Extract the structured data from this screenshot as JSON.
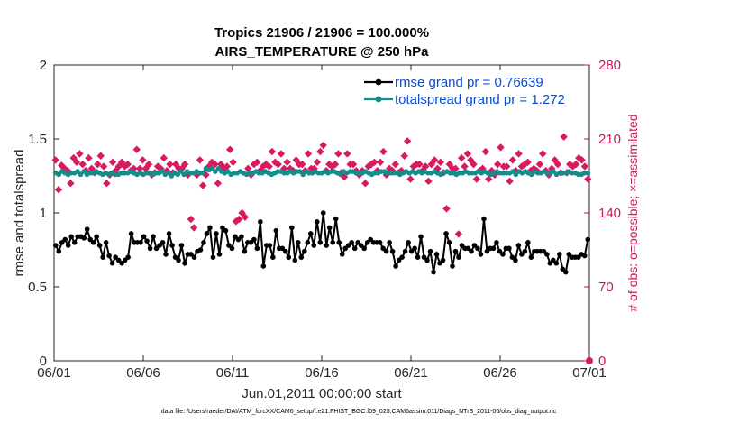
{
  "chart_data": {
    "type": "line",
    "title": "Tropics 21906 / 21906 = 100.000%",
    "subtitle": "AIRS_TEMPERATURE @ 250 hPa",
    "xlabel": "Jun.01,2011 00:00:00 start",
    "ylabel": "rmse and totalspread",
    "y2label": "# of obs: o=possible; ×=assimilated",
    "x_ticks": [
      "06/01",
      "06/06",
      "06/11",
      "06/16",
      "06/21",
      "06/26",
      "07/01"
    ],
    "xlim": [
      0,
      30
    ],
    "ylim": [
      0,
      2
    ],
    "y2lim": [
      0,
      280
    ],
    "y_ticks": [
      "0",
      "0.5",
      "1",
      "1.5",
      "2"
    ],
    "y2_ticks": [
      "0",
      "70",
      "140",
      "210",
      "280"
    ],
    "series": [
      {
        "name": "rmse grand pr = 0.76639",
        "axis": "left",
        "color": "#000000",
        "values": [
          0.78,
          0.74,
          0.8,
          0.82,
          0.78,
          0.84,
          0.8,
          0.84,
          0.84,
          0.83,
          0.89,
          0.82,
          0.8,
          0.84,
          0.78,
          0.7,
          0.8,
          0.71,
          0.66,
          0.7,
          0.68,
          0.66,
          0.68,
          0.7,
          0.86,
          0.8,
          0.8,
          0.8,
          0.84,
          0.81,
          0.76,
          0.84,
          0.76,
          0.78,
          0.8,
          0.72,
          0.86,
          0.78,
          0.7,
          0.68,
          0.78,
          0.66,
          0.72,
          0.72,
          0.7,
          0.74,
          0.75,
          0.8,
          0.86,
          0.9,
          0.7,
          0.86,
          0.72,
          0.9,
          0.88,
          0.78,
          0.76,
          0.84,
          0.82,
          0.84,
          0.74,
          0.8,
          0.8,
          0.82,
          0.76,
          0.94,
          0.64,
          0.78,
          0.78,
          0.7,
          0.88,
          0.76,
          0.76,
          0.74,
          0.7,
          0.9,
          0.68,
          0.8,
          0.7,
          0.74,
          0.8,
          0.86,
          0.78,
          0.94,
          0.8,
          1.0,
          0.78,
          0.9,
          0.8,
          0.96,
          0.8,
          0.72,
          0.76,
          0.78,
          0.8,
          0.76,
          0.8,
          0.78,
          0.76,
          0.8,
          0.82,
          0.8,
          0.8,
          0.8,
          0.76,
          0.74,
          0.8,
          0.74,
          0.64,
          0.68,
          0.7,
          0.74,
          0.8,
          0.74,
          0.76,
          0.7,
          0.84,
          0.7,
          0.68,
          0.74,
          0.6,
          0.72,
          0.66,
          0.68,
          0.86,
          0.8,
          0.64,
          0.74,
          0.7,
          0.78,
          0.76,
          0.76,
          0.74,
          0.78,
          0.76,
          0.72,
          0.96,
          0.74,
          0.76,
          0.76,
          0.8,
          0.74,
          0.72,
          0.76,
          0.76,
          0.7,
          0.68,
          0.78,
          0.72,
          0.74,
          0.8,
          0.7,
          0.74,
          0.74,
          0.74,
          0.74,
          0.72,
          0.66,
          0.68,
          0.66,
          0.72,
          0.62,
          0.6,
          0.72,
          0.7,
          0.7,
          0.7,
          0.72,
          0.71,
          0.82
        ]
      },
      {
        "name": "totalspread grand pr = 1.272",
        "axis": "left",
        "color": "#138c8c",
        "values": [
          1.27,
          1.26,
          1.28,
          1.27,
          1.26,
          1.27,
          1.27,
          1.28,
          1.26,
          1.28,
          1.26,
          1.27,
          1.27,
          1.28,
          1.27,
          1.26,
          1.27,
          1.26,
          1.27,
          1.26,
          1.26,
          1.27,
          1.27,
          1.27,
          1.28,
          1.27,
          1.26,
          1.27,
          1.26,
          1.27,
          1.27,
          1.26,
          1.27,
          1.27,
          1.28,
          1.26,
          1.27,
          1.25,
          1.27,
          1.26,
          1.28,
          1.26,
          1.28,
          1.27,
          1.27,
          1.28,
          1.27,
          1.27,
          1.3,
          1.29,
          1.3,
          1.28,
          1.3,
          1.28,
          1.27,
          1.28,
          1.26,
          1.27,
          1.27,
          1.28,
          1.27,
          1.26,
          1.27,
          1.27,
          1.28,
          1.27,
          1.27,
          1.28,
          1.27,
          1.26,
          1.27,
          1.28,
          1.28,
          1.27,
          1.27,
          1.28,
          1.27,
          1.28,
          1.28,
          1.26,
          1.28,
          1.27,
          1.27,
          1.28,
          1.27,
          1.27,
          1.28,
          1.27,
          1.28,
          1.28,
          1.27,
          1.26,
          1.28,
          1.27,
          1.28,
          1.28,
          1.27,
          1.27,
          1.27,
          1.28,
          1.27,
          1.26,
          1.27,
          1.27,
          1.28,
          1.28,
          1.27,
          1.27,
          1.27,
          1.27,
          1.26,
          1.27,
          1.28,
          1.27,
          1.28,
          1.27,
          1.28,
          1.27,
          1.28,
          1.27,
          1.27,
          1.28,
          1.27,
          1.26,
          1.27,
          1.28,
          1.27,
          1.27,
          1.26,
          1.27,
          1.27,
          1.28,
          1.27,
          1.27,
          1.27,
          1.28,
          1.27,
          1.28,
          1.27,
          1.26,
          1.27,
          1.28,
          1.27,
          1.27,
          1.27,
          1.27,
          1.28,
          1.26,
          1.28,
          1.27,
          1.28,
          1.27,
          1.26,
          1.28,
          1.27,
          1.27,
          1.28,
          1.27,
          1.27,
          1.28,
          1.26,
          1.27,
          1.27,
          1.27,
          1.28,
          1.27,
          1.27,
          1.26,
          1.26,
          1.27,
          1.27
        ]
      },
      {
        "name": "# of obs assimilated",
        "axis": "right",
        "color": "#d81b60",
        "values": [
          190,
          162,
          185,
          182,
          180,
          168,
          192,
          188,
          196,
          186,
          180,
          192,
          182,
          178,
          186,
          194,
          184,
          168,
          176,
          188,
          180,
          184,
          188,
          184,
          186,
          180,
          182,
          200,
          182,
          190,
          182,
          186,
          176,
          178,
          184,
          182,
          192,
          180,
          186,
          178,
          186,
          182,
          182,
          186,
          176,
          134,
          126,
          176,
          190,
          166,
          176,
          184,
          188,
          186,
          168,
          186,
          182,
          184,
          200,
          188,
          132,
          134,
          140,
          136,
          182,
          176,
          186,
          188,
          180,
          184,
          186,
          184,
          198,
          188,
          186,
          196,
          182,
          188,
          182,
          180,
          190,
          186,
          186,
          180,
          196,
          182,
          182,
          188,
          198,
          204,
          180,
          186,
          184,
          186,
          196,
          178,
          174,
          196,
          186,
          186,
          180,
          176,
          180,
          168,
          184,
          186,
          188,
          180,
          188,
          198,
          176,
          182,
          180,
          186,
          178,
          180,
          194,
          208,
          172,
          184,
          186,
          186,
          180,
          184,
          170,
          186,
          190,
          182,
          188,
          178,
          144,
          186,
          182,
          182,
          120,
          192,
          184,
          196,
          190,
          186,
          172,
          180,
          182,
          198,
          172,
          180,
          176,
          186,
          202,
          184,
          184,
          170,
          190,
          180,
          196,
          184,
          186,
          188,
          180,
          182,
          180,
          186,
          196,
          180,
          176,
          182,
          190,
          186,
          178,
          212,
          178,
          186,
          184,
          186,
          192,
          190,
          184,
          172
        ]
      }
    ]
  },
  "legend": {
    "rmse": "rmse grand pr = 0.76639",
    "spread": "totalspread grand pr = 1.272"
  },
  "footer": "data file: /Users/raeder/DAI/ATM_forcXX/CAM6_setup/f.e21.FHIST_BGC.f09_025.CAM6assim.011/Diags_NTrS_2011-06/obs_diag_output.nc",
  "colors": {
    "rmse": "#000000",
    "spread": "#138c8c",
    "obs": "#d81b60",
    "legend_text": "#0a4cd6",
    "right_axis": "#c41a5e"
  }
}
